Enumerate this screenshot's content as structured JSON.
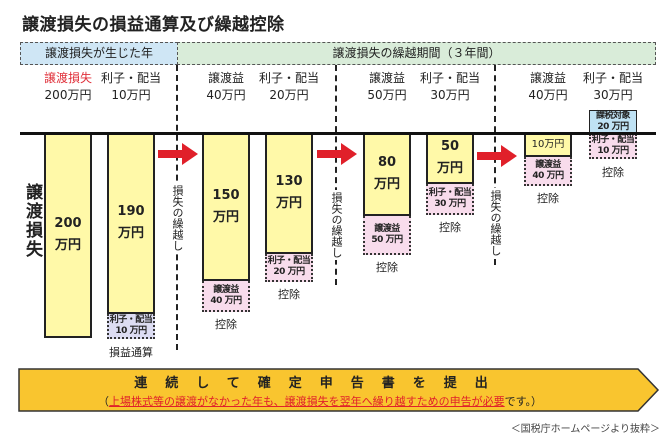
{
  "title": "譲渡損失の損益通算及び繰越控除",
  "bands": {
    "loss_year": "譲渡損失が生じた年",
    "carryover": "譲渡損失の繰越期間（３年間）"
  },
  "columns": [
    {
      "label": "譲渡損失",
      "value": "200万円",
      "color": "#e0303a"
    },
    {
      "label": "利子・配当",
      "value": "10万円"
    },
    {
      "label": "譲渡益",
      "value": "40万円"
    },
    {
      "label": "利子・配当",
      "value": "20万円"
    },
    {
      "label": "譲渡益",
      "value": "50万円"
    },
    {
      "label": "利子・配当",
      "value": "30万円"
    },
    {
      "label": "譲渡益",
      "value": "40万円"
    },
    {
      "label": "利子・配当",
      "value": "30万円"
    }
  ],
  "side_label": "譲渡損失",
  "bars": [
    {
      "amount": "200",
      "unit": "万円"
    },
    {
      "amount": "190",
      "unit": "万円",
      "sub1": "利子・配当",
      "sub2": "10 万円",
      "caption": "損益通算"
    },
    {
      "amount": "150",
      "unit": "万円",
      "sub1": "譲渡益",
      "sub2": "40 万円",
      "caption": "控除"
    },
    {
      "amount": "130",
      "unit": "万円",
      "sub1": "利子・配当",
      "sub2": "20 万円",
      "caption": "控除"
    },
    {
      "amount": "80",
      "unit": "万円",
      "sub1": "譲渡益",
      "sub2": "50 万円",
      "caption": "控除"
    },
    {
      "amount": "50",
      "unit": "万円",
      "sub1": "利子・配当",
      "sub2": "30 万円",
      "caption": "控除"
    },
    {
      "amount": "10万円",
      "unit": "",
      "sub1": "譲渡益",
      "sub2": "40 万円",
      "caption": "控除"
    },
    {
      "taxable1": "課税対象",
      "taxable2": "20 万円",
      "sub1": "利子・配当",
      "sub2": "10 万円",
      "caption": "控除"
    }
  ],
  "carry_label": "損失の繰越し",
  "banner": {
    "line1": "連続して確定申告書を提出",
    "open": "（",
    "r1": "上場株式等の",
    "r2": "譲渡",
    "k1": "がなかった",
    "r3": "年も、",
    "r4": "譲渡損失を翌年へ繰り越すための申告が必要",
    "close": "です。）"
  },
  "source": "＜国税庁ホームページより抜粋＞",
  "colors": {
    "bar": "#fff9a8",
    "pink": "#f8dcec",
    "lavender": "#dcdcf2",
    "taxable": "#bfe2f4",
    "arrow": "#e0202a",
    "banner": "#f9c52f"
  }
}
